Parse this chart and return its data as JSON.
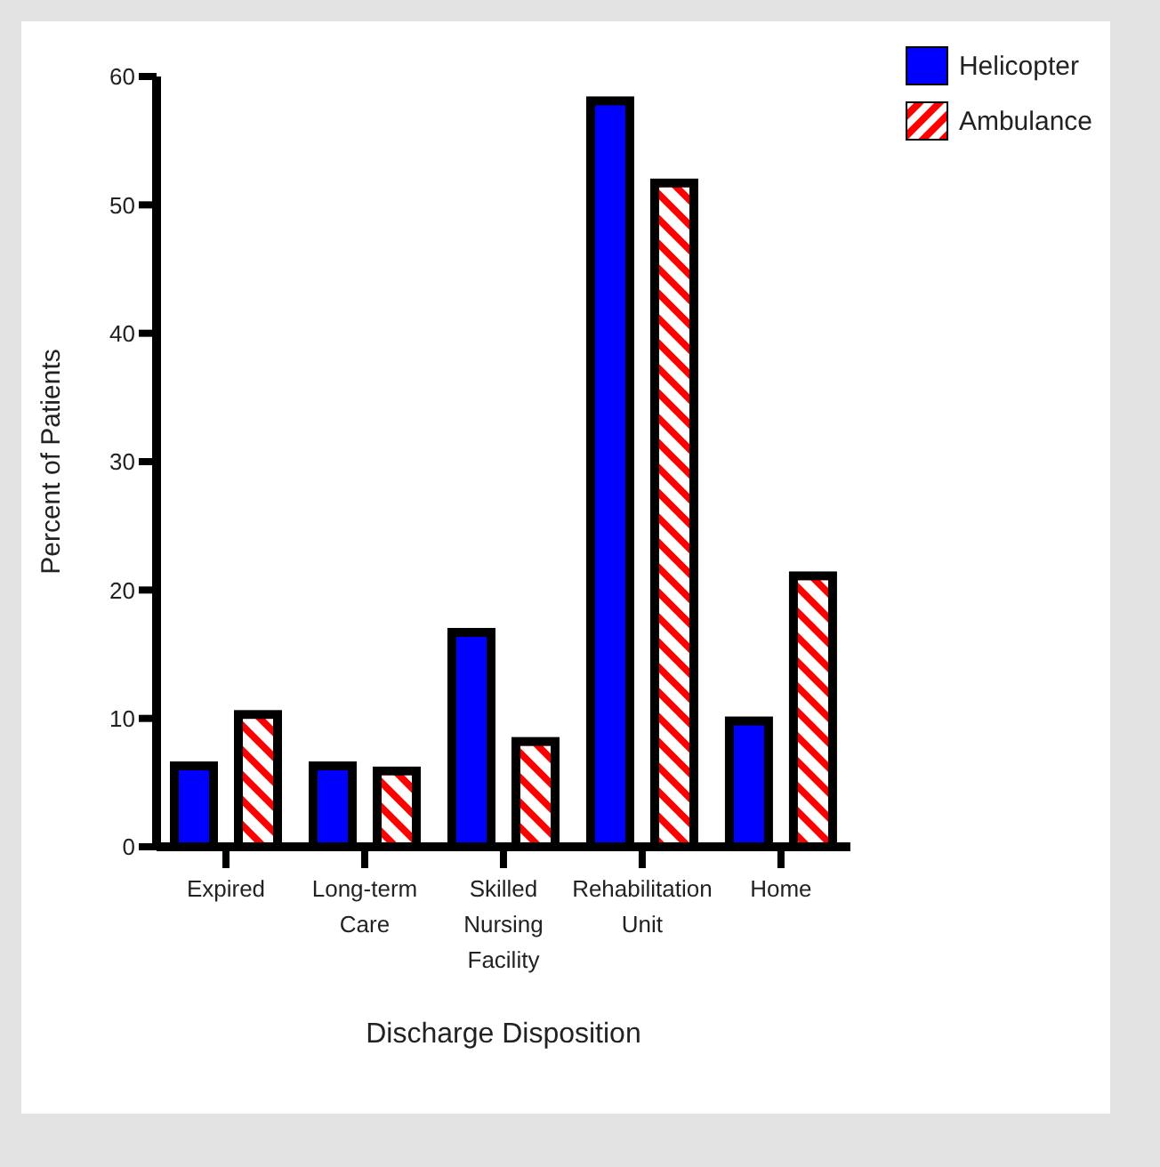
{
  "chart_data": {
    "type": "bar",
    "xlabel": "Discharge Disposition",
    "ylabel": "Percent of Patients",
    "categories": [
      "Expired",
      "Long-term\nCare",
      "Skilled\nNursing\nFacility",
      "Rehabilitation\nUnit",
      "Home"
    ],
    "series": [
      {
        "name": "Helicopter",
        "color": "#0000ff",
        "values": [
          6.3,
          6.3,
          16.7,
          58.1,
          9.8
        ]
      },
      {
        "name": "Ambulance",
        "color": "#ff0000",
        "values": [
          10.3,
          5.9,
          8.2,
          51.7,
          21.1
        ]
      }
    ],
    "ylim": [
      0,
      60
    ],
    "yticks": [
      0,
      10,
      20,
      30,
      40,
      50,
      60
    ],
    "grid": false,
    "legend": "top right"
  }
}
